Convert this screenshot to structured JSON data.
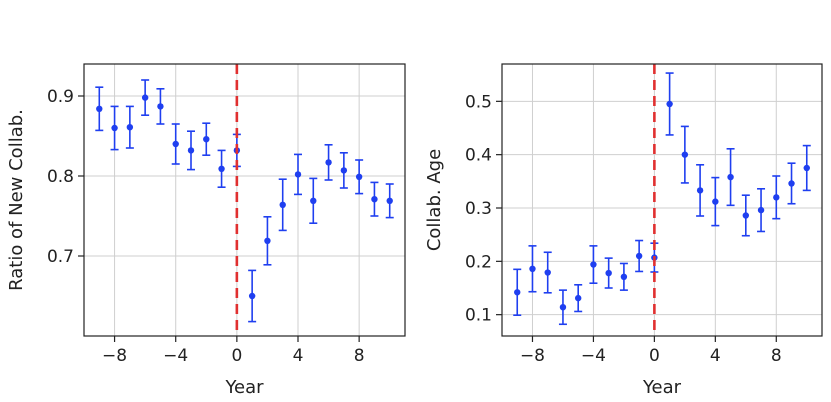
{
  "chart_data": [
    {
      "type": "scatter",
      "xlabel": "Year",
      "ylabel": "Ratio of New Collab.",
      "xlim": [
        -10,
        11
      ],
      "ylim": [
        0.6,
        0.94
      ],
      "xticks": [
        -8,
        -4,
        0,
        4,
        8
      ],
      "yticks": [
        0.7,
        0.8,
        0.9
      ],
      "xtick_labels": [
        "−8",
        "−4",
        "0",
        "4",
        "8"
      ],
      "ytick_labels": [
        "0.7",
        "0.8",
        "0.9"
      ],
      "grid": true,
      "vertical_line_x": 0,
      "color": "#1f3ff0",
      "vline_color": "#e03030",
      "points": [
        {
          "x": -9,
          "y": 0.884,
          "err": 0.027
        },
        {
          "x": -8,
          "y": 0.86,
          "err": 0.027
        },
        {
          "x": -7,
          "y": 0.861,
          "err": 0.026
        },
        {
          "x": -6,
          "y": 0.898,
          "err": 0.022
        },
        {
          "x": -5,
          "y": 0.887,
          "err": 0.022
        },
        {
          "x": -4,
          "y": 0.84,
          "err": 0.025
        },
        {
          "x": -3,
          "y": 0.832,
          "err": 0.024
        },
        {
          "x": -2,
          "y": 0.846,
          "err": 0.02
        },
        {
          "x": -1,
          "y": 0.809,
          "err": 0.023
        },
        {
          "x": 0,
          "y": 0.832,
          "err": 0.02
        },
        {
          "x": 1,
          "y": 0.65,
          "err": 0.032
        },
        {
          "x": 2,
          "y": 0.719,
          "err": 0.03
        },
        {
          "x": 3,
          "y": 0.764,
          "err": 0.032
        },
        {
          "x": 4,
          "y": 0.802,
          "err": 0.025
        },
        {
          "x": 5,
          "y": 0.769,
          "err": 0.028
        },
        {
          "x": 6,
          "y": 0.817,
          "err": 0.022
        },
        {
          "x": 7,
          "y": 0.807,
          "err": 0.022
        },
        {
          "x": 8,
          "y": 0.799,
          "err": 0.021
        },
        {
          "x": 9,
          "y": 0.771,
          "err": 0.021
        },
        {
          "x": 10,
          "y": 0.769,
          "err": 0.021
        }
      ]
    },
    {
      "type": "scatter",
      "xlabel": "Year",
      "ylabel": "Collab. Age",
      "xlim": [
        -10,
        11
      ],
      "ylim": [
        0.06,
        0.57
      ],
      "xticks": [
        -8,
        -4,
        0,
        4,
        8
      ],
      "yticks": [
        0.1,
        0.2,
        0.3,
        0.4,
        0.5
      ],
      "xtick_labels": [
        "−8",
        "−4",
        "0",
        "4",
        "8"
      ],
      "ytick_labels": [
        "0.1",
        "0.2",
        "0.3",
        "0.4",
        "0.5"
      ],
      "grid": true,
      "vertical_line_x": 0,
      "color": "#1f3ff0",
      "vline_color": "#e03030",
      "points": [
        {
          "x": -9,
          "y": 0.142,
          "err": 0.043
        },
        {
          "x": -8,
          "y": 0.186,
          "err": 0.043
        },
        {
          "x": -7,
          "y": 0.179,
          "err": 0.038
        },
        {
          "x": -6,
          "y": 0.114,
          "err": 0.032
        },
        {
          "x": -5,
          "y": 0.131,
          "err": 0.025
        },
        {
          "x": -4,
          "y": 0.194,
          "err": 0.035
        },
        {
          "x": -3,
          "y": 0.178,
          "err": 0.028
        },
        {
          "x": -2,
          "y": 0.171,
          "err": 0.025
        },
        {
          "x": -1,
          "y": 0.21,
          "err": 0.029
        },
        {
          "x": 0,
          "y": 0.207,
          "err": 0.027
        },
        {
          "x": 1,
          "y": 0.495,
          "err": 0.058
        },
        {
          "x": 2,
          "y": 0.4,
          "err": 0.053
        },
        {
          "x": 3,
          "y": 0.333,
          "err": 0.048
        },
        {
          "x": 4,
          "y": 0.312,
          "err": 0.045
        },
        {
          "x": 5,
          "y": 0.358,
          "err": 0.053
        },
        {
          "x": 6,
          "y": 0.286,
          "err": 0.038
        },
        {
          "x": 7,
          "y": 0.296,
          "err": 0.04
        },
        {
          "x": 8,
          "y": 0.32,
          "err": 0.04
        },
        {
          "x": 9,
          "y": 0.346,
          "err": 0.038
        },
        {
          "x": 10,
          "y": 0.375,
          "err": 0.042
        }
      ]
    }
  ]
}
